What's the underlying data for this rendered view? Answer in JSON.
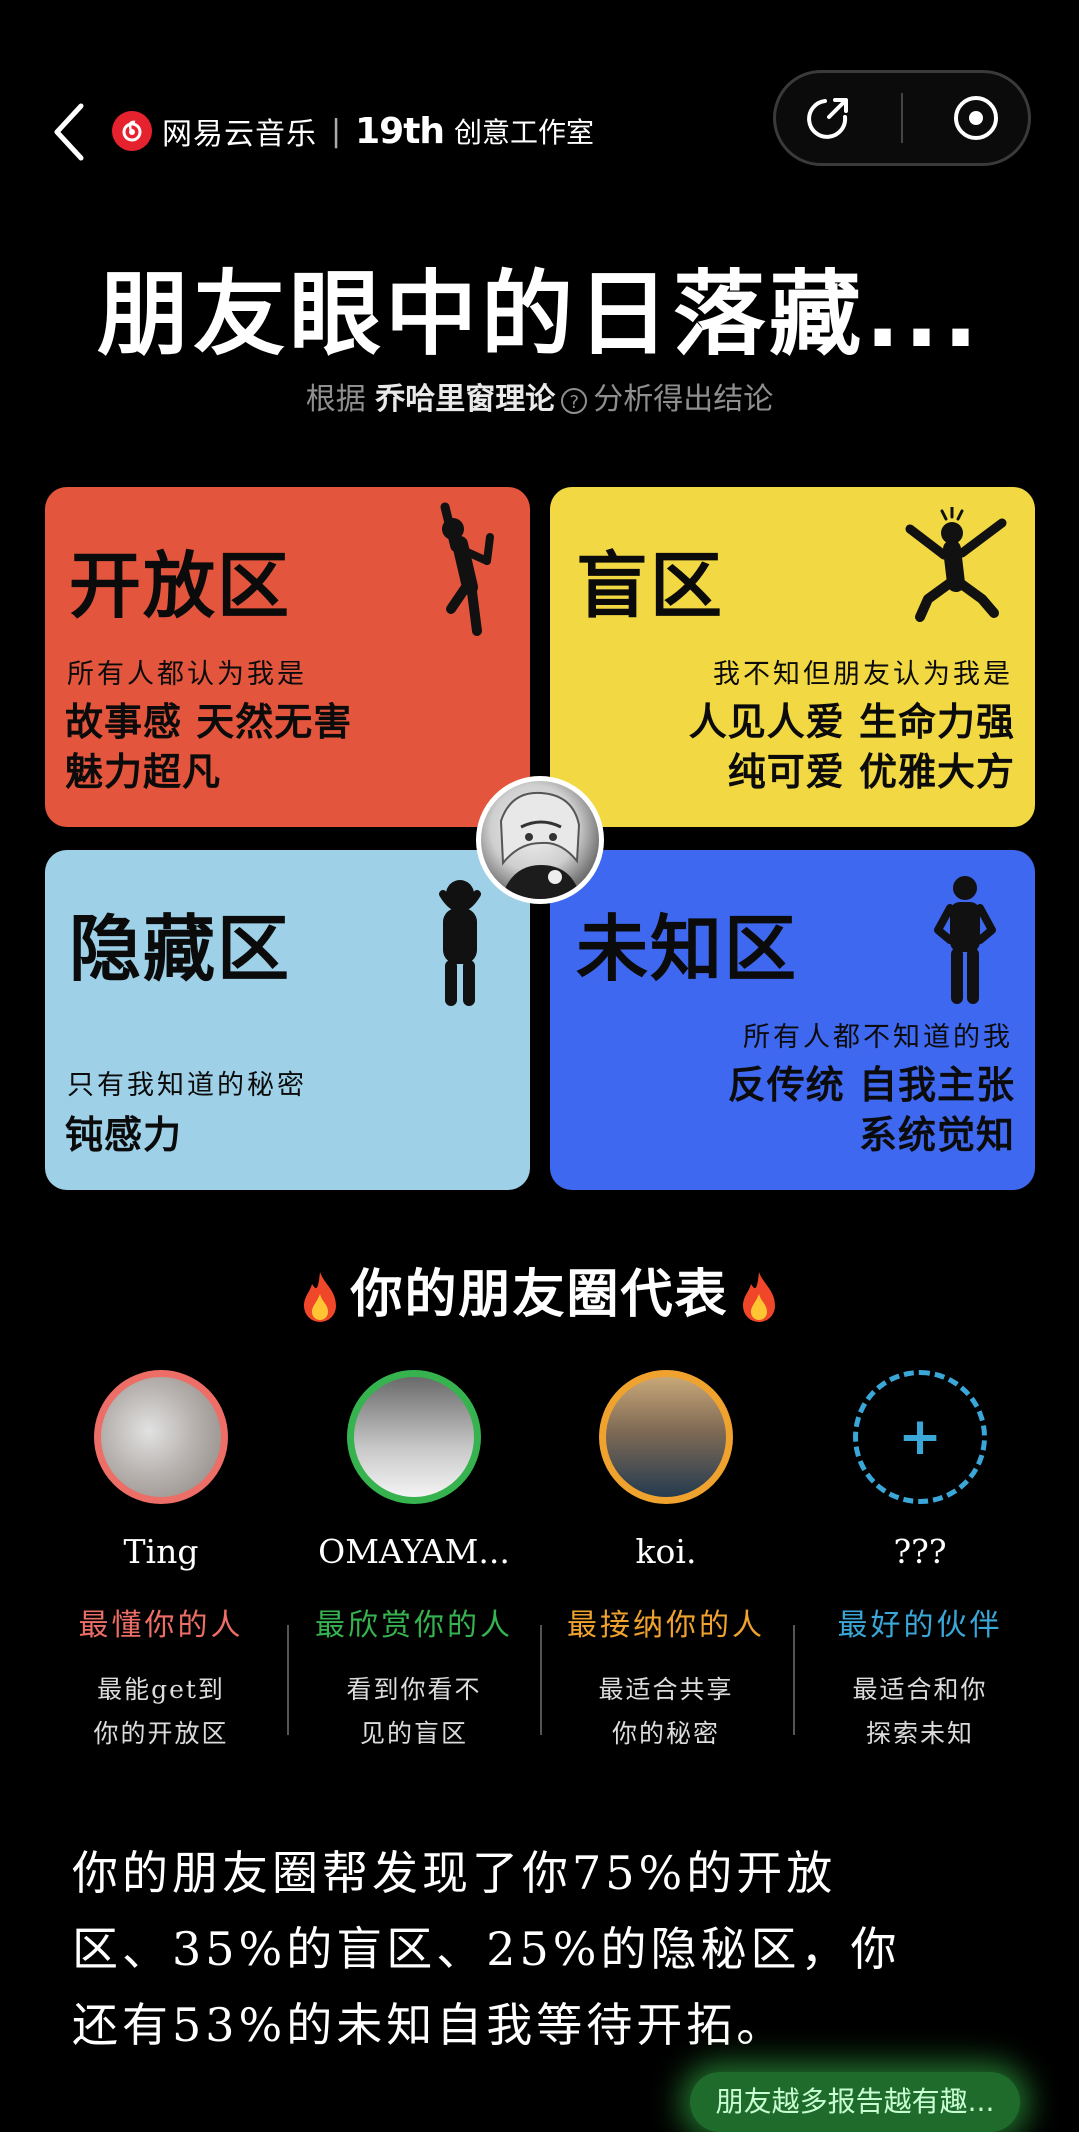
{
  "header": {
    "back_icon": "chevron-left-icon",
    "brand_logo_icon": "netease-cloud-music-logo",
    "brand_name": "网易云音乐",
    "brand_separator": "|",
    "brand_19th": "19th",
    "brand_studio": "创意工作室",
    "share_icon": "share-icon",
    "close_icon": "target-close-icon"
  },
  "title": "朋友眼中的日落藏...",
  "subtitle": {
    "prefix": "根据",
    "theory": "乔哈里窗理论",
    "help_icon": "?",
    "suffix": "分析得出结论"
  },
  "quadrants": {
    "open": {
      "title": "开放区",
      "caption": "所有人都认为我是",
      "traits_line1": "故事感 天然无害",
      "traits_line2": "魅力超凡",
      "color": "#e3553c",
      "figure": "cheering-person-icon"
    },
    "blind": {
      "title": "盲区",
      "caption": "我不知但朋友认为我是",
      "traits_line1": "人见人爱 生命力强",
      "traits_line2": "纯可爱 优雅大方",
      "color": "#f2d943",
      "figure": "jumping-person-icon"
    },
    "hidden": {
      "title": "隐藏区",
      "caption": "只有我知道的秘密",
      "traits_line1": "钝感力",
      "color": "#9ed1e8",
      "figure": "hiding-face-person-icon"
    },
    "unknown": {
      "title": "未知区",
      "caption": "所有人都不知道的我",
      "traits_line1": "反传统 自我主张",
      "traits_line2": "系统觉知",
      "color": "#3f68f1",
      "figure": "standing-person-icon"
    }
  },
  "section": {
    "title": "你的朋友圈代表",
    "fire_icon": "fire-icon"
  },
  "friends": [
    {
      "name": "Ting",
      "role": "最懂你的人",
      "desc_line1": "最能get到",
      "desc_line2": "你的开放区",
      "color": "#ec6e66"
    },
    {
      "name": "OMAYAM...",
      "role": "最欣赏你的人",
      "desc_line1": "看到你看不",
      "desc_line2": "见的盲区",
      "color": "#36b34f"
    },
    {
      "name": "koi.",
      "role": "最接纳你的人",
      "desc_line1": "最适合共享",
      "desc_line2": "你的秘密",
      "color": "#f0a22e"
    },
    {
      "name": "???",
      "role": "最好的伙伴",
      "desc_line1": "最适合和你",
      "desc_line2": "探索未知",
      "color": "#3aa7d8",
      "add_icon": "+"
    }
  ],
  "summary": {
    "line1": "你的朋友圈帮发现了你75%的开放",
    "line2": "区、35%的盲区、25%的隐秘区，你",
    "line3": "还有53%的未知自我等待开拓。"
  },
  "bottom_tag": "朋友越多报告越有趣..."
}
